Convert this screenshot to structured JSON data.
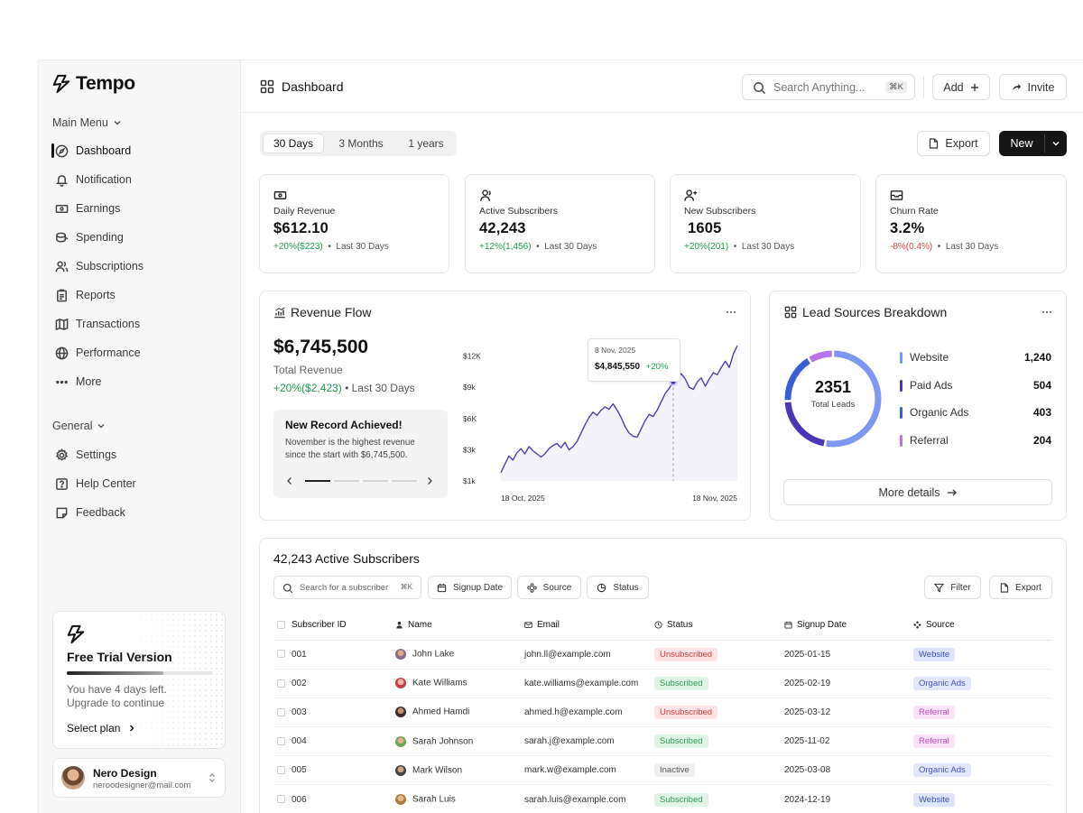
{
  "brand": {
    "name": "Tempo"
  },
  "sidebar": {
    "main_menu_label": "Main Menu",
    "main_items": [
      {
        "label": "Dashboard"
      },
      {
        "label": "Notification"
      },
      {
        "label": "Earnings"
      },
      {
        "label": "Spending"
      },
      {
        "label": "Subscriptions"
      },
      {
        "label": "Reports"
      },
      {
        "label": "Transactions"
      },
      {
        "label": "Performance"
      },
      {
        "label": "More"
      }
    ],
    "general_label": "General",
    "general_items": [
      {
        "label": "Settings"
      },
      {
        "label": "Help Center"
      },
      {
        "label": "Feedback"
      }
    ],
    "trial": {
      "title": "Free Trial Version",
      "line1": "You have 4 days left.",
      "line2": "Upgrade to continue",
      "cta": "Select plan",
      "progress": 0.66
    },
    "user": {
      "name": "Nero Design",
      "email": "neroodesigner@mail.com"
    }
  },
  "header": {
    "title": "Dashboard",
    "search_placeholder": "Search Anything...",
    "search_shortcut": "⌘K",
    "add_label": "Add",
    "invite_label": "Invite"
  },
  "toolbar": {
    "ranges": [
      "30 Days",
      "3 Months",
      "1 years"
    ],
    "selected_range": "30 Days",
    "export_label": "Export",
    "new_label": "New"
  },
  "kpis": [
    {
      "label": "Daily Revenue",
      "value": "$612.10",
      "change": "+20%($223)",
      "period": "Last 30 Days",
      "trend": "up"
    },
    {
      "label": "Active Subscribers",
      "value": "42,243",
      "change": "+12%(1,456)",
      "period": "Last 30 Days",
      "trend": "up"
    },
    {
      "label": "New Subscribers",
      "value": "1605",
      "change": "+20%(201)",
      "period": "Last 30 Days",
      "trend": "up"
    },
    {
      "label": "Churn Rate",
      "value": "3.2%",
      "change": "-8%(0.4%)",
      "period": "Last 30 Days",
      "trend": "down"
    }
  ],
  "revenue_flow": {
    "title": "Revenue Flow",
    "total": "$6,745,500",
    "total_label": "Total Revenue",
    "change": "+20%($2,423)",
    "period": "Last 30 Days",
    "record_title": "New Record Achieved!",
    "record_text_1": "November is the highest revenue",
    "record_text_2": "since the start with $6,745,500.",
    "tooltip_date": "8 Nov, 2025",
    "tooltip_value": "$4,845,550",
    "tooltip_change": "+20%"
  },
  "chart_data": {
    "type": "line",
    "title": "Revenue Flow",
    "x_start_label": "18 Oct, 2025",
    "x_end_label": "18 Nov, 2025",
    "y_ticks": [
      "$1k",
      "$3k",
      "$6K",
      "$9k",
      "$12K"
    ],
    "y_tick_values": [
      0,
      3,
      6,
      9,
      12
    ],
    "ylim": [
      0,
      13
    ],
    "highlight_index": 43,
    "series": [
      {
        "values": [
          0.8,
          1.6,
          2.4,
          2.0,
          2.7,
          3.1,
          2.6,
          3.3,
          2.9,
          2.6,
          2.3,
          2.6,
          3.1,
          3.4,
          3.6,
          3.2,
          3.7,
          3.0,
          3.3,
          3.8,
          4.6,
          5.4,
          6.1,
          6.6,
          6.3,
          6.8,
          7.1,
          6.9,
          7.4,
          6.8,
          6.1,
          5.2,
          4.6,
          4.3,
          4.2,
          5.0,
          5.8,
          6.4,
          6.2,
          6.8,
          7.6,
          8.4,
          8.9,
          9.5,
          9.8,
          10.3,
          9.8,
          9.0,
          8.8,
          9.5,
          9.9,
          9.1,
          9.8,
          10.4,
          10.2,
          10.9,
          11.5,
          10.9,
          12.2,
          13.0
        ]
      }
    ]
  },
  "lead_sources": {
    "title": "Lead Sources Breakdown",
    "total": "2351",
    "total_label": "Total Leads",
    "more_label": "More details",
    "items": [
      {
        "label": "Website",
        "value": 1240,
        "display": "1,240",
        "color": "#7d97f3"
      },
      {
        "label": "Paid Ads",
        "value": 504,
        "display": "504",
        "color": "#4a37b8"
      },
      {
        "label": "Organic Ads",
        "value": 403,
        "display": "403",
        "color": "#3a5ed8"
      },
      {
        "label": "Referral",
        "value": 204,
        "display": "204",
        "color": "#b774ea"
      }
    ]
  },
  "subscribers": {
    "title": "42,243 Active Subscribers",
    "search_placeholder": "Search for a subscriber",
    "search_shortcut": "⌘K",
    "filter_chips": [
      "Signup Date",
      "Source",
      "Status"
    ],
    "filter_label": "Filter",
    "export_label": "Export",
    "columns": [
      "Subscriber ID",
      "Name",
      "Email",
      "Status",
      "Signup Date",
      "Source"
    ],
    "rows": [
      {
        "id": "001",
        "name": "John Lake",
        "email": "john.ll@example.com",
        "status": "Unsubscribed",
        "date": "2025-01-15",
        "source": "Website"
      },
      {
        "id": "002",
        "name": "Kate Williams",
        "email": "kate.williams@example.com",
        "status": "Subscribed",
        "date": "2025-02-19",
        "source": "Organic Ads"
      },
      {
        "id": "003",
        "name": "Ahmed Hamdi",
        "email": "ahmed.h@example.com",
        "status": "Unsubscribed",
        "date": "2025-03-12",
        "source": "Referral"
      },
      {
        "id": "004",
        "name": "Sarah Johnson",
        "email": "sarah.j@example.com",
        "status": "Subscribed",
        "date": "2025-11-02",
        "source": "Referral"
      },
      {
        "id": "005",
        "name": "Mark Wilson",
        "email": "mark.w@example.com",
        "status": "Inactive",
        "date": "2025-03-08",
        "source": "Organic Ads"
      },
      {
        "id": "006",
        "name": "Sarah Luis",
        "email": "sarah.luis@example.com",
        "status": "Subscribed",
        "date": "2024-12-19",
        "source": "Website"
      }
    ]
  }
}
